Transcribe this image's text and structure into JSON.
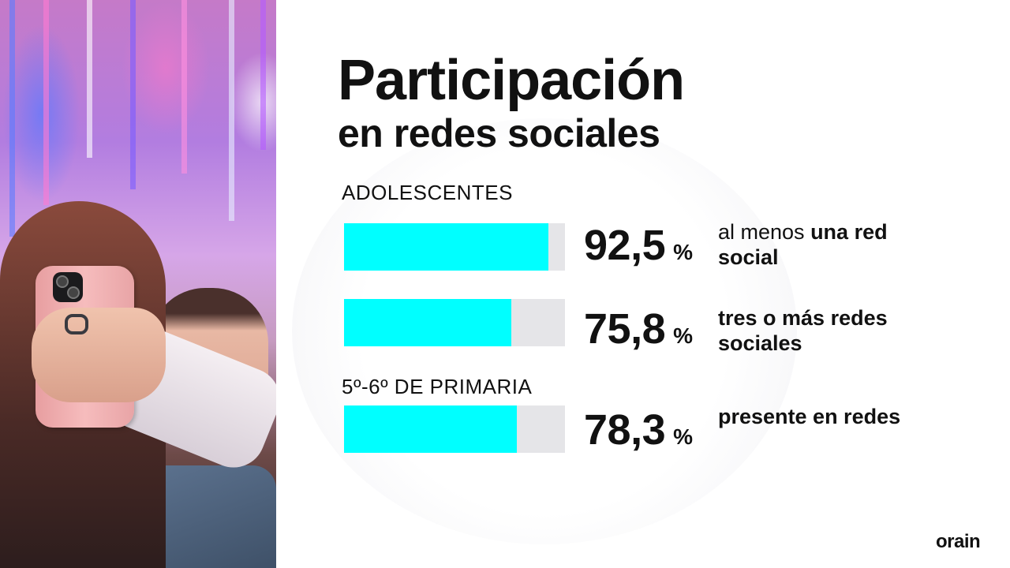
{
  "title": {
    "line1": "Participación",
    "line2": "en redes sociales"
  },
  "sections": {
    "teens": "ADOLESCENTES",
    "primary": "5º-6º DE PRIMARIA"
  },
  "chart_data": {
    "type": "bar",
    "orientation": "horizontal",
    "title": "Participación en redes sociales",
    "unit": "%",
    "xlim": [
      0,
      100
    ],
    "groups": [
      "ADOLESCENTES",
      "5º-6º DE PRIMARIA"
    ],
    "series": [
      {
        "group": "ADOLESCENTES",
        "value": 92.5,
        "value_label": "92,5",
        "desc_plain": "al menos ",
        "desc_bold": "una red social"
      },
      {
        "group": "ADOLESCENTES",
        "value": 75.8,
        "value_label": "75,8",
        "desc_plain": "",
        "desc_bold": "tres o más redes sociales"
      },
      {
        "group": "5º-6º DE PRIMARIA",
        "value": 78.3,
        "value_label": "78,3",
        "desc_plain": "",
        "desc_bold": "presente en redes"
      }
    ],
    "colors": {
      "fill": "#00ffff",
      "track": "#e5e5e8"
    }
  },
  "percent_symbol": "%",
  "brand": "orain"
}
